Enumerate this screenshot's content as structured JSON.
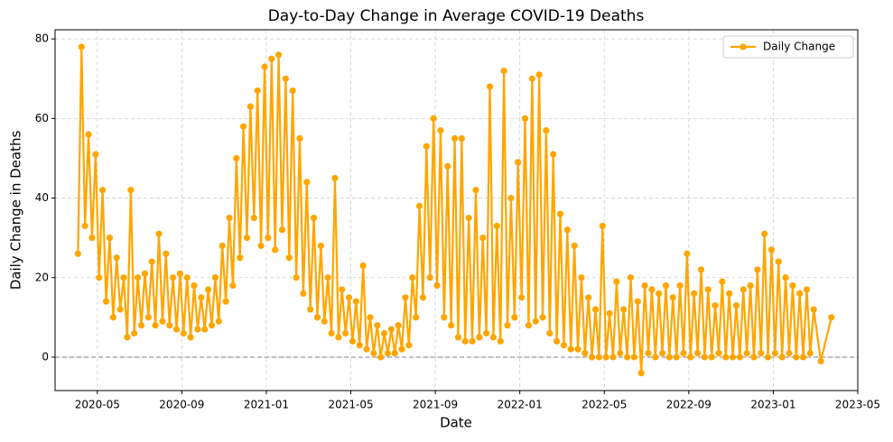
{
  "chart_data": {
    "type": "line",
    "title": "Day-to-Day Change in Average COVID-19 Deaths",
    "xlabel": "Date",
    "ylabel": "Daily Change in Deaths",
    "x": [
      "2020-04",
      "2020-04",
      "2020-04",
      "2020-04",
      "2020-04",
      "2020-04",
      "2020-05",
      "2020-05",
      "2020-05",
      "2020-05",
      "2020-05",
      "2020-05",
      "2020-06",
      "2020-06",
      "2020-06",
      "2020-06",
      "2020-06",
      "2020-06",
      "2020-07",
      "2020-07",
      "2020-07",
      "2020-07",
      "2020-07",
      "2020-07",
      "2020-08",
      "2020-08",
      "2020-08",
      "2020-08",
      "2020-08",
      "2020-08",
      "2020-09",
      "2020-09",
      "2020-09",
      "2020-09",
      "2020-09",
      "2020-09",
      "2020-10",
      "2020-10",
      "2020-10",
      "2020-10",
      "2020-10",
      "2020-10",
      "2020-11",
      "2020-11",
      "2020-11",
      "2020-11",
      "2020-11",
      "2020-11",
      "2020-12",
      "2020-12",
      "2020-12",
      "2020-12",
      "2020-12",
      "2020-12",
      "2021-01",
      "2021-01",
      "2021-01",
      "2021-01",
      "2021-01",
      "2021-01",
      "2021-02",
      "2021-02",
      "2021-02",
      "2021-02",
      "2021-02",
      "2021-02",
      "2021-03",
      "2021-03",
      "2021-03",
      "2021-03",
      "2021-03",
      "2021-03",
      "2021-04",
      "2021-04",
      "2021-04",
      "2021-04",
      "2021-04",
      "2021-04",
      "2021-05",
      "2021-05",
      "2021-05",
      "2021-05",
      "2021-05",
      "2021-05",
      "2021-06",
      "2021-06",
      "2021-06",
      "2021-06",
      "2021-06",
      "2021-06",
      "2021-07",
      "2021-07",
      "2021-07",
      "2021-07",
      "2021-07",
      "2021-07",
      "2021-08",
      "2021-08",
      "2021-08",
      "2021-08",
      "2021-08",
      "2021-08",
      "2021-09",
      "2021-09",
      "2021-09",
      "2021-09",
      "2021-09",
      "2021-09",
      "2021-10",
      "2021-10",
      "2021-10",
      "2021-10",
      "2021-10",
      "2021-10",
      "2021-11",
      "2021-11",
      "2021-11",
      "2021-11",
      "2021-11",
      "2021-11",
      "2021-12",
      "2021-12",
      "2021-12",
      "2021-12",
      "2021-12",
      "2021-12",
      "2022-01",
      "2022-01",
      "2022-01",
      "2022-01",
      "2022-01",
      "2022-01",
      "2022-02",
      "2022-02",
      "2022-02",
      "2022-02",
      "2022-02",
      "2022-02",
      "2022-03",
      "2022-03",
      "2022-03",
      "2022-03",
      "2022-03",
      "2022-03",
      "2022-04",
      "2022-04",
      "2022-04",
      "2022-04",
      "2022-04",
      "2022-04",
      "2022-05",
      "2022-05",
      "2022-05",
      "2022-05",
      "2022-05",
      "2022-05",
      "2022-06",
      "2022-06",
      "2022-06",
      "2022-06",
      "2022-06",
      "2022-06",
      "2022-07",
      "2022-07",
      "2022-07",
      "2022-07",
      "2022-07",
      "2022-07",
      "2022-08",
      "2022-08",
      "2022-08",
      "2022-08",
      "2022-08",
      "2022-08",
      "2022-09",
      "2022-09",
      "2022-09",
      "2022-09",
      "2022-09",
      "2022-09",
      "2022-10",
      "2022-10",
      "2022-10",
      "2022-10",
      "2022-10",
      "2022-10",
      "2022-11",
      "2022-11",
      "2022-11",
      "2022-11",
      "2022-11",
      "2022-11",
      "2022-12",
      "2022-12",
      "2022-12",
      "2022-12",
      "2022-12",
      "2022-12",
      "2023-01",
      "2023-01",
      "2023-01",
      "2023-01",
      "2023-01",
      "2023-01",
      "2023-02",
      "2023-02",
      "2023-02",
      "2023-02",
      "2023-02",
      "2023-02",
      "2023-03",
      "2023-03"
    ],
    "series": [
      {
        "name": "Daily Change",
        "color": "#ffa500",
        "values": [
          26,
          78,
          33,
          56,
          30,
          51,
          20,
          42,
          14,
          30,
          10,
          25,
          12,
          20,
          5,
          42,
          6,
          20,
          8,
          21,
          10,
          24,
          8,
          31,
          9,
          26,
          8,
          20,
          7,
          21,
          6,
          20,
          5,
          18,
          7,
          15,
          7,
          17,
          8,
          20,
          9,
          28,
          14,
          35,
          18,
          50,
          25,
          58,
          30,
          63,
          35,
          67,
          28,
          73,
          30,
          75,
          27,
          76,
          32,
          70,
          25,
          67,
          20,
          55,
          16,
          44,
          12,
          35,
          10,
          28,
          9,
          20,
          6,
          45,
          5,
          17,
          6,
          15,
          4,
          14,
          3,
          23,
          2,
          10,
          1,
          8,
          0,
          6,
          1,
          7,
          1,
          8,
          2,
          15,
          3,
          20,
          10,
          38,
          15,
          53,
          20,
          60,
          18,
          57,
          10,
          48,
          8,
          55,
          5,
          55,
          4,
          35,
          4,
          42,
          5,
          30,
          6,
          68,
          5,
          33,
          4,
          72,
          8,
          40,
          10,
          49,
          15,
          60,
          8,
          70,
          9,
          71,
          10,
          57,
          6,
          51,
          4,
          36,
          3,
          32,
          2,
          28,
          2,
          20,
          1,
          15,
          0,
          12,
          0,
          33,
          0,
          11,
          0,
          19,
          1,
          12,
          0,
          20,
          0,
          14,
          -4,
          18,
          1,
          17,
          0,
          16,
          1,
          18,
          0,
          15,
          0,
          18,
          1,
          26,
          0,
          16,
          1,
          22,
          0,
          17,
          0,
          13,
          1,
          19,
          0,
          16,
          0,
          13,
          0,
          17,
          1,
          18,
          0,
          22,
          1,
          31,
          0,
          27,
          1,
          24,
          0,
          20,
          1,
          18,
          0,
          16,
          0,
          17,
          1,
          12,
          -1,
          10
        ]
      }
    ],
    "xlim": [
      "2020-03",
      "2023-05"
    ],
    "xticks": [
      "2020-05",
      "2020-09",
      "2021-01",
      "2021-05",
      "2021-09",
      "2022-01",
      "2022-05",
      "2022-09",
      "2023-01",
      "2023-05"
    ],
    "ylim": [
      -8.4,
      82.3
    ],
    "yticks": [
      0,
      20,
      40,
      60,
      80
    ],
    "hline": 0,
    "hline_color": "#808080",
    "grid": true,
    "legend": "upper right"
  }
}
